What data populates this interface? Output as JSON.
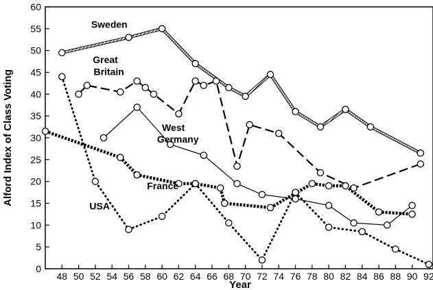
{
  "chart_data": {
    "type": "line",
    "title": "",
    "xlabel": "Year",
    "ylabel": "Alford Index of Class Voting",
    "xlim": [
      46,
      92.5
    ],
    "ylim": [
      0,
      60
    ],
    "x_ticks": [
      48,
      50,
      52,
      54,
      56,
      58,
      60,
      62,
      64,
      66,
      68,
      70,
      72,
      74,
      76,
      78,
      80,
      82,
      84,
      86,
      88,
      90,
      92
    ],
    "y_ticks": [
      0,
      5,
      10,
      15,
      20,
      25,
      30,
      35,
      40,
      45,
      50,
      55,
      60
    ],
    "grid": false,
    "legend": "none",
    "series": [
      {
        "name": "Sweden",
        "style": "hatched",
        "x": [
          48,
          56,
          60,
          64,
          68,
          70,
          73,
          76,
          79,
          82,
          85,
          91
        ],
        "y": [
          49.5,
          53,
          55,
          47,
          41.5,
          39.5,
          44.5,
          36,
          32.5,
          36.5,
          32.5,
          26.5
        ]
      },
      {
        "name": "Great Britain",
        "style": "long-dash",
        "x": [
          50,
          51,
          55,
          57,
          58,
          59,
          62,
          64,
          65,
          66.5,
          69,
          70.5,
          74,
          79,
          83,
          91
        ],
        "y": [
          40,
          42,
          40.5,
          43,
          41.5,
          40,
          35.5,
          43,
          42,
          43,
          23.5,
          33,
          31,
          22,
          18.5,
          24
        ]
      },
      {
        "name": "West Germany",
        "style": "solid",
        "x": [
          53,
          57,
          61,
          65,
          69,
          72,
          76,
          80,
          83,
          87,
          90
        ],
        "y": [
          30,
          37,
          28.5,
          26,
          19.5,
          17,
          16,
          14.5,
          10.5,
          10,
          14.5
        ]
      },
      {
        "name": "France",
        "style": "heavy-dotted",
        "x": [
          46,
          55,
          57,
          62,
          64,
          67,
          67.5,
          73,
          78,
          80,
          82,
          86,
          90
        ],
        "y": [
          31.5,
          25.5,
          21.5,
          19.5,
          19.5,
          18.5,
          15,
          14,
          19.5,
          19,
          19,
          13,
          12.5
        ]
      },
      {
        "name": "USA",
        "style": "dotted",
        "x": [
          48,
          52,
          56,
          60,
          64,
          68,
          72,
          76,
          80,
          84,
          88,
          92
        ],
        "y": [
          44,
          20,
          9,
          12,
          19.5,
          10.5,
          2,
          17.5,
          9.5,
          8.5,
          4.5,
          1
        ]
      }
    ],
    "annotations": [
      {
        "text": "Sweden",
        "x": 51.5,
        "y": 55.2
      },
      {
        "text": "Great",
        "x": 51.7,
        "y": 47.1
      },
      {
        "text": "Britain",
        "x": 51.8,
        "y": 44.4
      },
      {
        "text": "West",
        "x": 60,
        "y": 31.6
      },
      {
        "text": "Germany",
        "x": 59.4,
        "y": 28.9
      },
      {
        "text": "France",
        "x": 58.2,
        "y": 18.2
      },
      {
        "text": "USA",
        "x": 51.3,
        "y": 13.6
      }
    ]
  }
}
